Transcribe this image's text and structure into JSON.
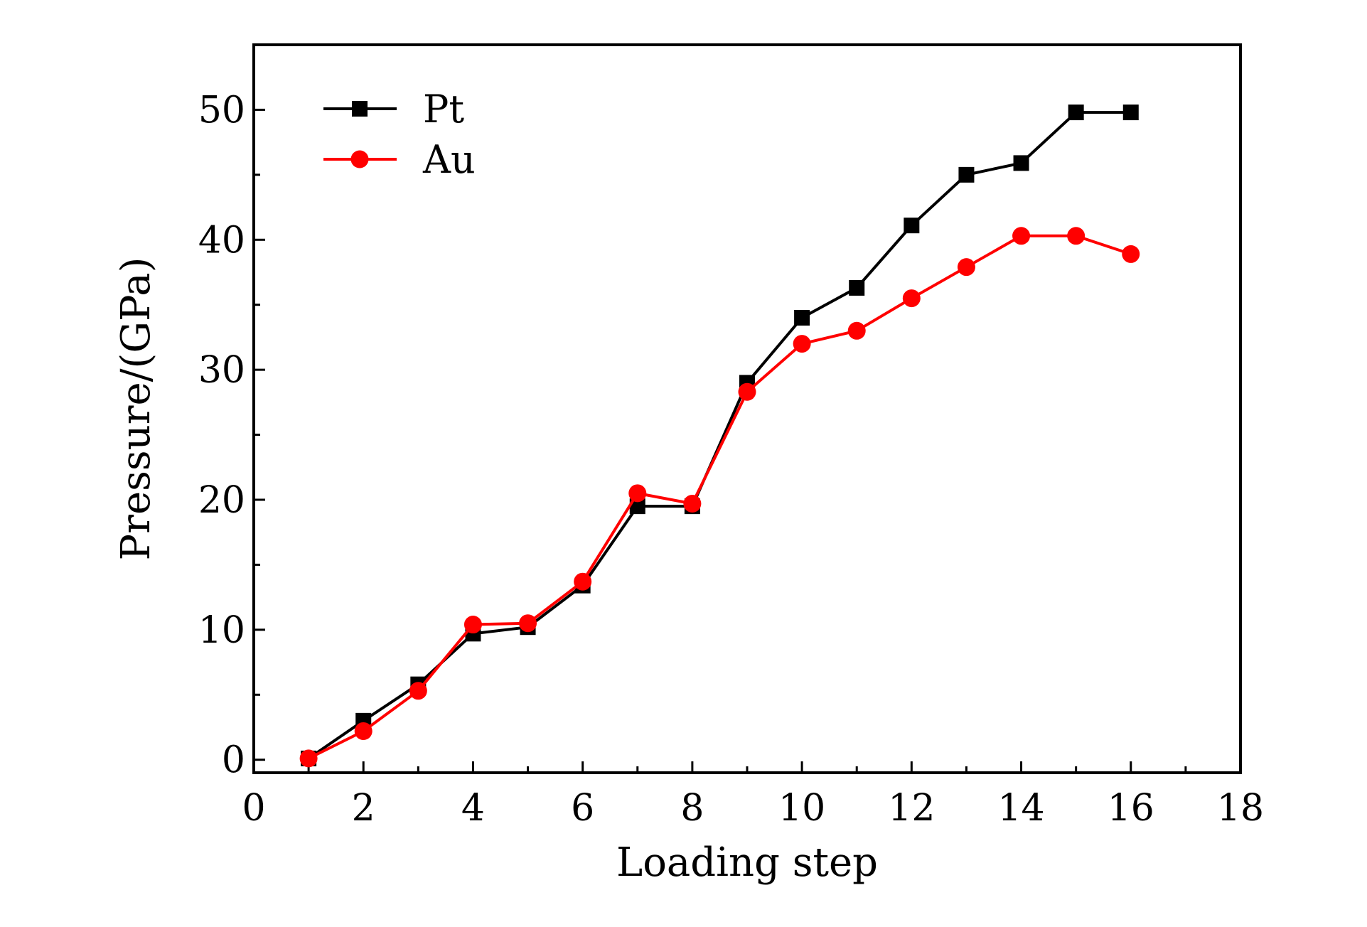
{
  "chart_data": {
    "type": "line",
    "xlabel": "Loading step",
    "ylabel": "Pressure/(GPa)",
    "xlim": [
      0,
      18
    ],
    "ylim": [
      -1,
      55
    ],
    "xticks": [
      0,
      2,
      4,
      6,
      8,
      10,
      12,
      14,
      16,
      18
    ],
    "yticks": [
      0,
      10,
      20,
      30,
      40,
      50
    ],
    "grid": false,
    "legend_position": "top-left",
    "series": [
      {
        "name": "Pt",
        "color": "#000000",
        "marker": "square",
        "x": [
          1,
          2,
          3,
          4,
          5,
          6,
          7,
          8,
          9,
          10,
          11,
          12,
          13,
          14,
          15,
          16
        ],
        "y": [
          0.1,
          3.0,
          5.8,
          9.7,
          10.2,
          13.4,
          19.5,
          19.5,
          29.0,
          34.0,
          36.3,
          41.1,
          45.0,
          45.9,
          49.8,
          49.8
        ]
      },
      {
        "name": "Au",
        "color": "#ff0000",
        "marker": "circle",
        "x": [
          1,
          2,
          3,
          4,
          5,
          6,
          7,
          8,
          9,
          10,
          11,
          12,
          13,
          14,
          15,
          16
        ],
        "y": [
          0.1,
          2.2,
          5.3,
          10.4,
          10.5,
          13.7,
          20.5,
          19.7,
          28.3,
          32.0,
          33.0,
          35.5,
          37.9,
          40.3,
          40.3,
          38.9
        ]
      }
    ]
  }
}
